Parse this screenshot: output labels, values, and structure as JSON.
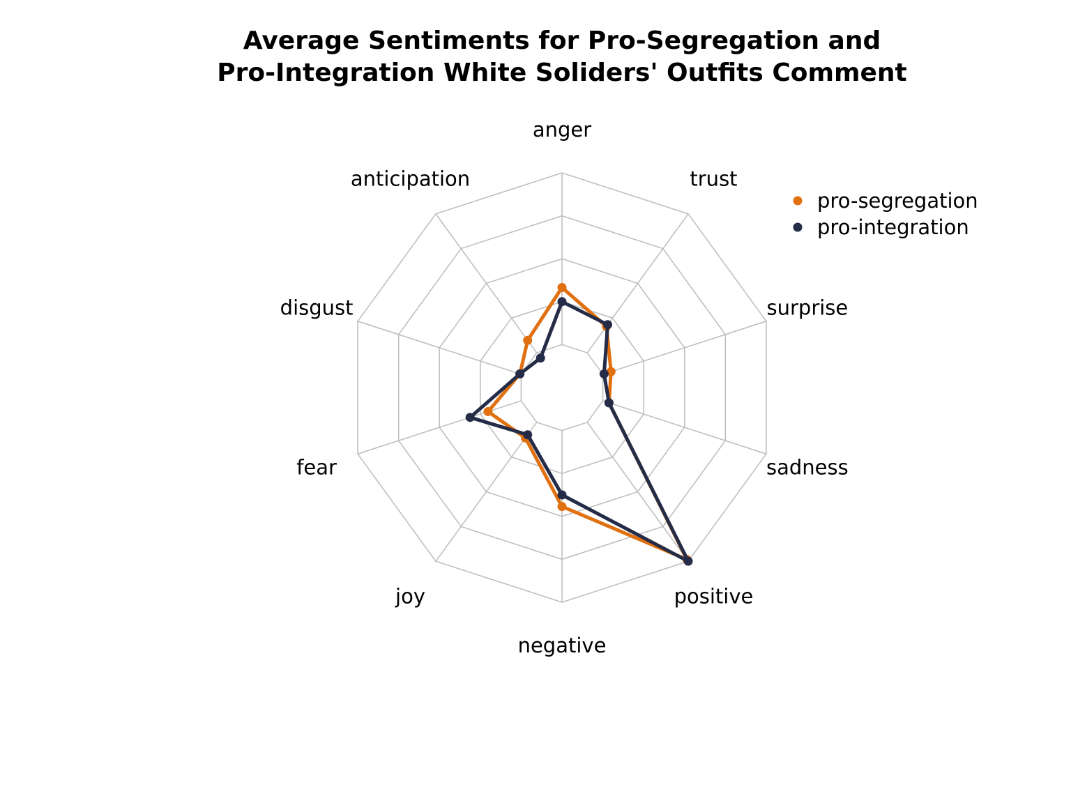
{
  "chart_data": {
    "type": "radar",
    "title_lines": [
      "Average Sentiments for Pro-Segregation and",
      "Pro-Integration White Soliders' Outfits Comment"
    ],
    "categories": [
      "anger",
      "trust",
      "surprise",
      "sadness",
      "positive",
      "negative",
      "joy",
      "fear",
      "disgust",
      "anticipation"
    ],
    "rlim": [
      0,
      5
    ],
    "grid": true,
    "grid_rings": 5,
    "legend_position": "top-right",
    "series": [
      {
        "name": "pro-segregation",
        "color": "#e07010",
        "values": [
          2.33,
          1.76,
          1.2,
          1.15,
          4.95,
          2.77,
          1.45,
          1.81,
          1.03,
          1.36
        ]
      },
      {
        "name": "pro-integration",
        "color": "#242c48",
        "values": [
          2.0,
          1.81,
          1.03,
          1.15,
          5.0,
          2.5,
          1.36,
          2.25,
          1.03,
          0.85
        ]
      }
    ]
  }
}
